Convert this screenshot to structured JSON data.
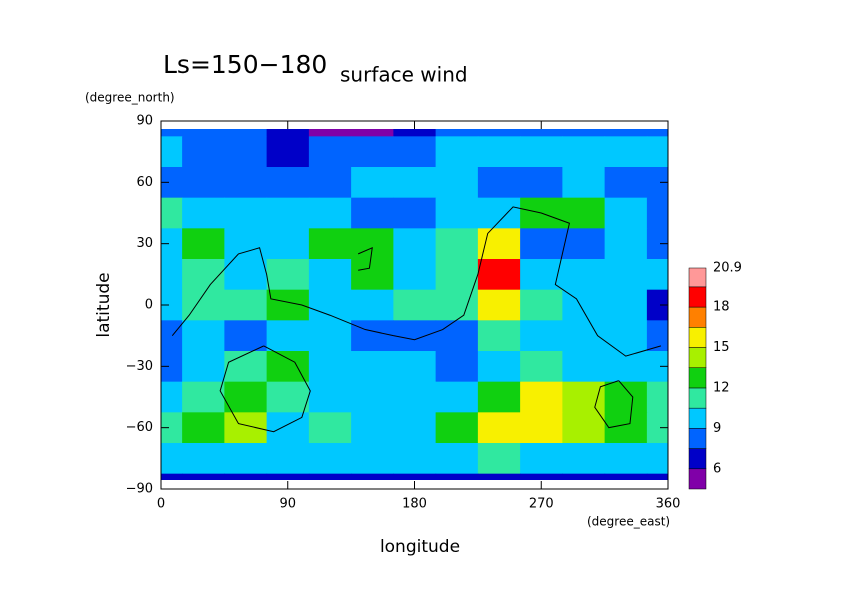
{
  "chart_data": {
    "type": "contour",
    "title": "Ls=150−180",
    "subtitle": "surface wind",
    "x_label": "longitude",
    "x_unit": "(degree_east)",
    "y_label": "latitude",
    "y_unit": "(degree_north)",
    "x": [
      0,
      30,
      60,
      90,
      120,
      150,
      180,
      210,
      240,
      270,
      300,
      330,
      360
    ],
    "y": [
      90,
      75,
      60,
      45,
      30,
      15,
      0,
      -15,
      -30,
      -45,
      -60,
      -75,
      -90
    ],
    "z": [
      [
        8,
        8,
        8,
        6,
        5,
        5,
        6,
        8,
        8,
        8,
        8,
        8,
        8
      ],
      [
        9,
        8,
        8,
        7,
        8,
        8,
        8,
        9,
        9,
        10,
        9,
        9,
        9
      ],
      [
        8,
        8,
        8,
        8,
        8,
        9,
        9,
        9,
        8,
        8,
        9,
        8,
        8
      ],
      [
        11,
        10,
        9,
        9,
        9,
        8,
        8,
        9,
        10,
        12,
        13,
        10,
        8
      ],
      [
        10,
        12,
        10,
        10,
        12,
        13,
        10,
        11,
        15,
        8,
        8,
        9,
        8
      ],
      [
        10,
        11,
        9,
        11,
        10,
        12,
        9,
        11,
        18,
        10,
        9,
        10,
        9
      ],
      [
        9,
        11,
        11,
        12,
        10,
        9,
        11,
        11,
        15,
        11,
        10,
        9,
        6
      ],
      [
        8,
        9,
        8,
        10,
        10,
        8,
        8,
        8,
        11,
        9,
        9,
        9,
        8
      ],
      [
        8,
        9,
        11,
        12,
        9,
        10,
        9,
        8,
        10,
        11,
        10,
        9,
        9
      ],
      [
        9,
        11,
        12,
        11,
        10,
        9,
        9,
        10,
        12,
        15,
        14,
        12,
        11
      ],
      [
        11,
        12,
        14,
        10,
        11,
        10,
        10,
        12,
        16,
        15,
        14,
        12,
        11
      ],
      [
        9,
        9,
        10,
        9,
        9,
        9,
        9,
        10,
        11,
        10,
        10,
        9,
        9
      ],
      [
        7,
        7,
        7,
        7,
        7,
        7,
        7,
        7,
        7,
        7,
        7,
        7,
        7
      ]
    ],
    "levels": [
      4.5,
      6,
      7.5,
      9,
      10.5,
      12,
      13.5,
      15,
      16.5,
      18,
      19.5,
      20.9
    ],
    "colors": [
      "#8000a8",
      "#0000c8",
      "#0064ff",
      "#00c8ff",
      "#30e8a0",
      "#10d010",
      "#a8f000",
      "#f8f000",
      "#ff8000",
      "#ff0000",
      "#ff9898"
    ],
    "colorbar_ticks": [
      6,
      9,
      12,
      15,
      18,
      20.9
    ],
    "contour": {
      "x": [
        8,
        20,
        35,
        55,
        70,
        75,
        78,
        100,
        120,
        145,
        165,
        180,
        200,
        215,
        225,
        232,
        250,
        270,
        290,
        285,
        280,
        295,
        310,
        330,
        355,
        null,
        73,
        95,
        106,
        100,
        80,
        55,
        42,
        48,
        73,
        null,
        325,
        335,
        333,
        318,
        308,
        312,
        325,
        null,
        140,
        150,
        148,
        140
      ],
      "y": [
        -15,
        -5,
        10,
        25,
        28,
        15,
        3,
        0,
        -5,
        -12,
        -15,
        -17,
        -12,
        -5,
        15,
        35,
        48,
        45,
        40,
        25,
        10,
        3,
        -15,
        -25,
        -20,
        null,
        -20,
        -28,
        -42,
        -55,
        -62,
        -58,
        -42,
        -28,
        -20,
        null,
        -37,
        -45,
        -58,
        -60,
        -50,
        -40,
        -37,
        null,
        25,
        28,
        18,
        17
      ]
    },
    "xlim": [
      0,
      360
    ],
    "ylim": [
      -90,
      90
    ],
    "xticks": [
      0,
      90,
      180,
      270,
      360
    ],
    "yticks": [
      {
        "value": -90,
        "label": "−90"
      },
      {
        "value": -60,
        "label": "−60"
      },
      {
        "value": -30,
        "label": "−30"
      },
      0,
      30,
      60,
      90
    ]
  }
}
